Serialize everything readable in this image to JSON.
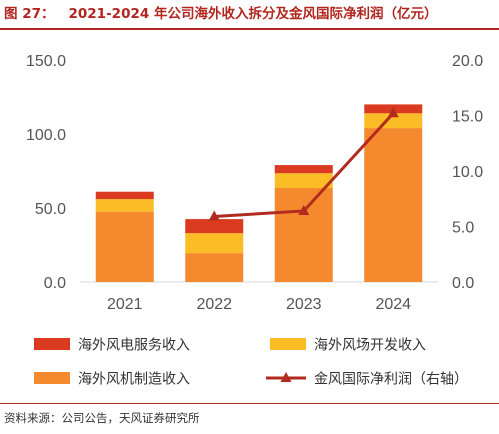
{
  "figure": {
    "number": "图 27：",
    "title": "2021-2024 年公司海外收入拆分及金风国际净利润（亿元）",
    "source": "资料来源：公司公告，天风证券研究所"
  },
  "colors": {
    "accent": "#b1271f",
    "service": "#d93a20",
    "wind_farm": "#fbbd25",
    "manufacturing": "#f4892e",
    "net_profit": "#b12b1f"
  },
  "chart_data": {
    "type": "bar",
    "stacked": true,
    "categories": [
      "2021",
      "2022",
      "2023",
      "2024"
    ],
    "series": [
      {
        "name": "海外风机制造收入",
        "axis": "left",
        "values": [
          47.5,
          19.5,
          63.5,
          104.0
        ]
      },
      {
        "name": "海外风场开发收入",
        "axis": "left",
        "values": [
          8.5,
          13.5,
          10.0,
          10.0
        ]
      },
      {
        "name": "海外风电服务收入",
        "axis": "left",
        "values": [
          5.0,
          9.5,
          5.5,
          6.0
        ]
      },
      {
        "name": "金风国际净利润（右轴）",
        "type": "line",
        "axis": "right",
        "x": [
          "2022",
          "2023",
          "2024"
        ],
        "values": [
          5.9,
          6.4,
          15.2
        ]
      }
    ],
    "y_left": {
      "min": 0,
      "max": 150,
      "ticks": [
        "0.0",
        "50.0",
        "100.0",
        "150.0"
      ]
    },
    "y_right": {
      "min": 0,
      "max": 20,
      "ticks": [
        "0.0",
        "5.0",
        "10.0",
        "15.0",
        "20.0"
      ]
    },
    "legend": {
      "placement": "bottom",
      "items": [
        {
          "label": "海外风电服务收入",
          "kind": "bar",
          "color": "#d93a20"
        },
        {
          "label": "海外风场开发收入",
          "kind": "bar",
          "color": "#fbbd25"
        },
        {
          "label": "海外风机制造收入",
          "kind": "bar",
          "color": "#f4892e"
        },
        {
          "label": "金风国际净利润（右轴）",
          "kind": "line",
          "color": "#b12b1f"
        }
      ]
    }
  }
}
